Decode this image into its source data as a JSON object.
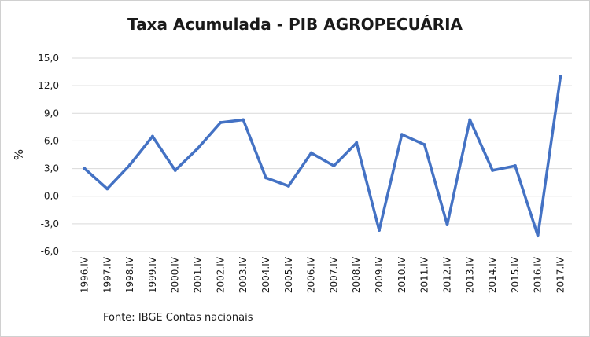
{
  "chart_data": {
    "type": "line",
    "title": "Taxa Acumulada - PIB AGROPECUÁRIA",
    "xlabel": "",
    "ylabel": "%",
    "source": "Fonte: IBGE Contas nacionais",
    "grid": true,
    "legend": "none",
    "ylim": [
      -6,
      15
    ],
    "yticks": [
      15,
      12,
      9,
      6,
      3,
      0,
      -3,
      -6
    ],
    "ytick_labels": [
      "15,0",
      "12,0",
      "9,0",
      "6,0",
      "3,0",
      "0,0",
      "-3,0",
      "-6,0"
    ],
    "line_color": "#4472c4",
    "grid_color": "#d9d9d9",
    "categories": [
      "1996.IV",
      "1997.IV",
      "1998.IV",
      "1999.IV",
      "2000.IV",
      "2001.IV",
      "2002.IV",
      "2003.IV",
      "2004.IV",
      "2005.IV",
      "2006.IV",
      "2007.IV",
      "2008.IV",
      "2009.IV",
      "2010.IV",
      "2011.IV",
      "2012.IV",
      "2013.IV",
      "2014.IV",
      "2015.IV",
      "2016.IV",
      "2017.IV"
    ],
    "values": [
      3.0,
      0.8,
      3.4,
      6.5,
      2.8,
      5.2,
      8.0,
      8.3,
      2.0,
      1.1,
      4.7,
      3.3,
      5.8,
      -3.7,
      6.7,
      5.6,
      -3.1,
      8.3,
      2.8,
      3.3,
      -4.3,
      13.0
    ]
  }
}
